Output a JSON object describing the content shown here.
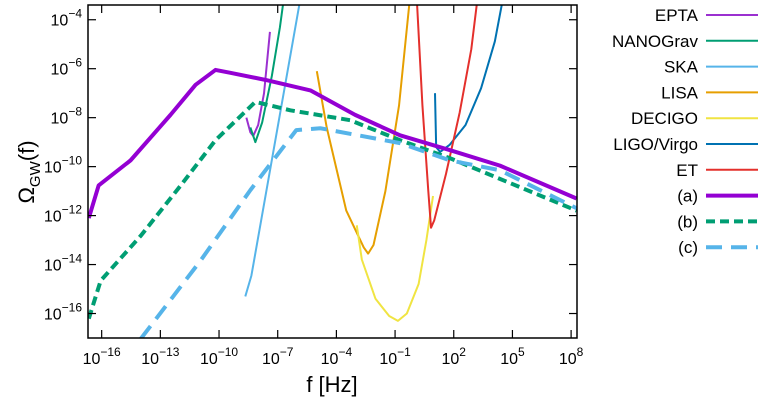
{
  "chart_data": {
    "type": "line",
    "xlabel": "f [Hz]",
    "ylabel": {
      "main": "Ω",
      "sub": "GW",
      "tail": "(f)"
    },
    "xscale": "log",
    "yscale": "log",
    "legend": "outside-right",
    "xlim": [
      2e-17,
      200000000.0
    ],
    "ylim": [
      1e-17,
      0.0004
    ],
    "xticks": [
      {
        "value": 1e-16,
        "label": "10^-16"
      },
      {
        "value": 1e-13,
        "label": "10^-13"
      },
      {
        "value": 1e-10,
        "label": "10^-10"
      },
      {
        "value": 1e-07,
        "label": "10^-7"
      },
      {
        "value": 0.0001,
        "label": "10^-4"
      },
      {
        "value": 0.1,
        "label": "10^-1"
      },
      {
        "value": 100,
        "label": "10^2"
      },
      {
        "value": 100000,
        "label": "10^5"
      },
      {
        "value": 100000000,
        "label": "10^8"
      }
    ],
    "yticks": [
      {
        "value": 1e-16,
        "label": "10^-16"
      },
      {
        "value": 1e-14,
        "label": "10^-14"
      },
      {
        "value": 1e-12,
        "label": "10^-12"
      },
      {
        "value": 1e-10,
        "label": "10^-10"
      },
      {
        "value": 1e-08,
        "label": "10^-8"
      },
      {
        "value": 1e-06,
        "label": "10^-6"
      },
      {
        "value": 0.0001,
        "label": "10^-4"
      }
    ],
    "series": [
      {
        "name": "EPTA",
        "color": "#9b30d0",
        "linewidth": 2,
        "linestyle": "solid",
        "x": [
          2.5e-09,
          4e-09,
          5.6e-09,
          1e-08,
          2e-08,
          4e-08
        ],
        "values": [
          1e-08,
          2.5e-09,
          1.8e-09,
          5e-09,
          1e-07,
          3.2e-05
        ]
      },
      {
        "name": "NANOGrav",
        "color": "#009e73",
        "linewidth": 2,
        "linestyle": "solid",
        "x": [
          4e-09,
          7.2e-09,
          1.6e-08,
          5e-08,
          1.3e-07,
          2e-07
        ],
        "values": [
          4e-09,
          1e-09,
          6.3e-09,
          5e-07,
          5e-05,
          0.00063
        ]
      },
      {
        "name": "SKA",
        "color": "#56b4e9",
        "linewidth": 2,
        "linestyle": "solid",
        "x": [
          2.2e-09,
          4.5e-09,
          1.4e-06
        ],
        "values": [
          5e-16,
          3.5e-15,
          0.00063
        ]
      },
      {
        "name": "LISA",
        "color": "#e69f00",
        "linewidth": 2,
        "linestyle": "solid",
        "x": [
          1e-05,
          3.2e-05,
          0.00032,
          0.0025,
          0.0042,
          0.0079,
          0.032,
          0.16,
          0.56
        ],
        "values": [
          7.9e-07,
          4e-09,
          1.6e-12,
          5e-14,
          2.8e-14,
          6.3e-14,
          1e-11,
          3.2e-08,
          0.00063
        ]
      },
      {
        "name": "DECIGO",
        "color": "#f0e442",
        "linewidth": 2,
        "linestyle": "solid",
        "x": [
          0.0011,
          0.002,
          0.01,
          0.05,
          0.14,
          0.4,
          1.6,
          4,
          8.7
        ],
        "values": [
          4e-13,
          1.6e-14,
          4e-16,
          7.9e-17,
          5e-17,
          1e-16,
          1.6e-15,
          1e-13,
          6.3e-12
        ]
      },
      {
        "name": "LIGO/Virgo",
        "color": "#0072b2",
        "linewidth": 2,
        "linestyle": "solid",
        "x": [
          11,
          12.6,
          20,
          63,
          400,
          2500,
          12600,
          31600
        ],
        "values": [
          1e-07,
          6.3e-10,
          4e-10,
          7.9e-10,
          5e-09,
          1.6e-07,
          1.3e-05,
          0.00063
        ]
      },
      {
        "name": "ET",
        "color": "#e4302c",
        "linewidth": 2,
        "linestyle": "solid",
        "x": [
          1.3,
          2.5,
          5,
          6.9,
          10,
          40,
          200,
          790,
          1600
        ],
        "values": [
          0.00063,
          3.2e-08,
          1e-11,
          3.2e-13,
          6.3e-13,
          5e-11,
          1.6e-08,
          6.3e-06,
          0.00063
        ]
      },
      {
        "name": "(a)",
        "color": "#9400d3",
        "linewidth": 4,
        "linestyle": "solid",
        "x": [
          2.2e-17,
          7e-17,
          3e-15,
          3.3e-13,
          6.3e-12,
          6.6e-11,
          3.8e-10,
          2.3e-08,
          4.7e-06,
          0.00091,
          0.18,
          65,
          23000,
          190000000
        ],
        "values": [
          7.9e-13,
          1.7e-11,
          1.8e-10,
          1.3e-08,
          2.2e-07,
          8.9e-07,
          6.8e-07,
          3.5e-07,
          1.3e-07,
          1.3e-08,
          1.9e-09,
          4.7e-10,
          1.1e-10,
          5e-12
        ]
      },
      {
        "name": "(b)",
        "color": "#009e73",
        "linewidth": 4,
        "linestyle": "dashed",
        "x": [
          2.2e-17,
          8.9e-17,
          1e-14,
          1.1e-12,
          6.6e-11,
          7.2e-09,
          4.4e-07,
          0.0005,
          0.18,
          65,
          190000000
        ],
        "values": [
          6.2e-17,
          2.2e-15,
          1.5e-13,
          1.7e-11,
          1.2e-09,
          4.4e-08,
          2e-08,
          7.9e-09,
          1.2e-09,
          2.2e-10,
          1.6e-12
        ]
      },
      {
        "name": "(c)",
        "color": "#56b4e9",
        "linewidth": 4,
        "linestyle": "long-dashed",
        "x": [
          1e-14,
          1.1e-11,
          4e-09,
          8.9e-07,
          1.5e-05,
          0.18,
          65,
          23000,
          190000000
        ],
        "values": [
          9.3e-18,
          1.4e-14,
          1.1e-11,
          3.1e-09,
          3.7e-09,
          9.1e-10,
          1.8e-10,
          7.1e-11,
          2e-12
        ]
      }
    ]
  }
}
